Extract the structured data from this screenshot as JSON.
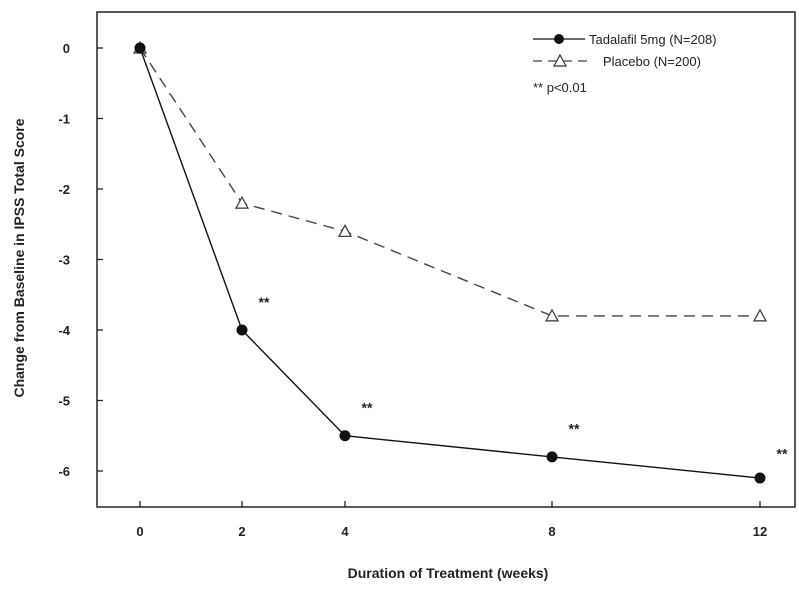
{
  "chart_data": {
    "type": "line",
    "title": "",
    "xlabel": "Duration of Treatment (weeks)",
    "ylabel": "Change from Baseline in IPSS Total Score",
    "x": [
      0,
      2,
      4,
      8,
      12
    ],
    "x_tick_labels": [
      "0",
      "2",
      "4",
      "8",
      "12"
    ],
    "y_ticks": [
      0,
      -1,
      -2,
      -3,
      -4,
      -5,
      -6
    ],
    "y_tick_labels": [
      "0",
      "-1",
      "-2",
      "-3",
      "-4",
      "-5",
      "-6"
    ],
    "ylim": [
      -6.4,
      0.45
    ],
    "x_scale": "categorical-equal-spacing",
    "grid": false,
    "legend_position": "top-right",
    "series": [
      {
        "name": "Tadalafil 5mg (N=208)",
        "values": [
          0,
          -4.0,
          -5.5,
          -5.8,
          -6.1
        ],
        "line_style": "solid",
        "marker": "filled-circle",
        "color": "#111111"
      },
      {
        "name": "Placebo (N=200)",
        "values": [
          0,
          -2.2,
          -2.6,
          -3.8,
          -3.8
        ],
        "line_style": "dashed",
        "marker": "open-triangle",
        "color": "#444444"
      }
    ],
    "annotations": [
      {
        "x": 2,
        "y": -3.6,
        "text": "**"
      },
      {
        "x": 4,
        "y": -5.1,
        "text": "**"
      },
      {
        "x": 8,
        "y": -5.4,
        "text": "**"
      },
      {
        "x": 12,
        "y": -5.75,
        "text": "**"
      }
    ],
    "legend_note": "** p<0.01"
  }
}
